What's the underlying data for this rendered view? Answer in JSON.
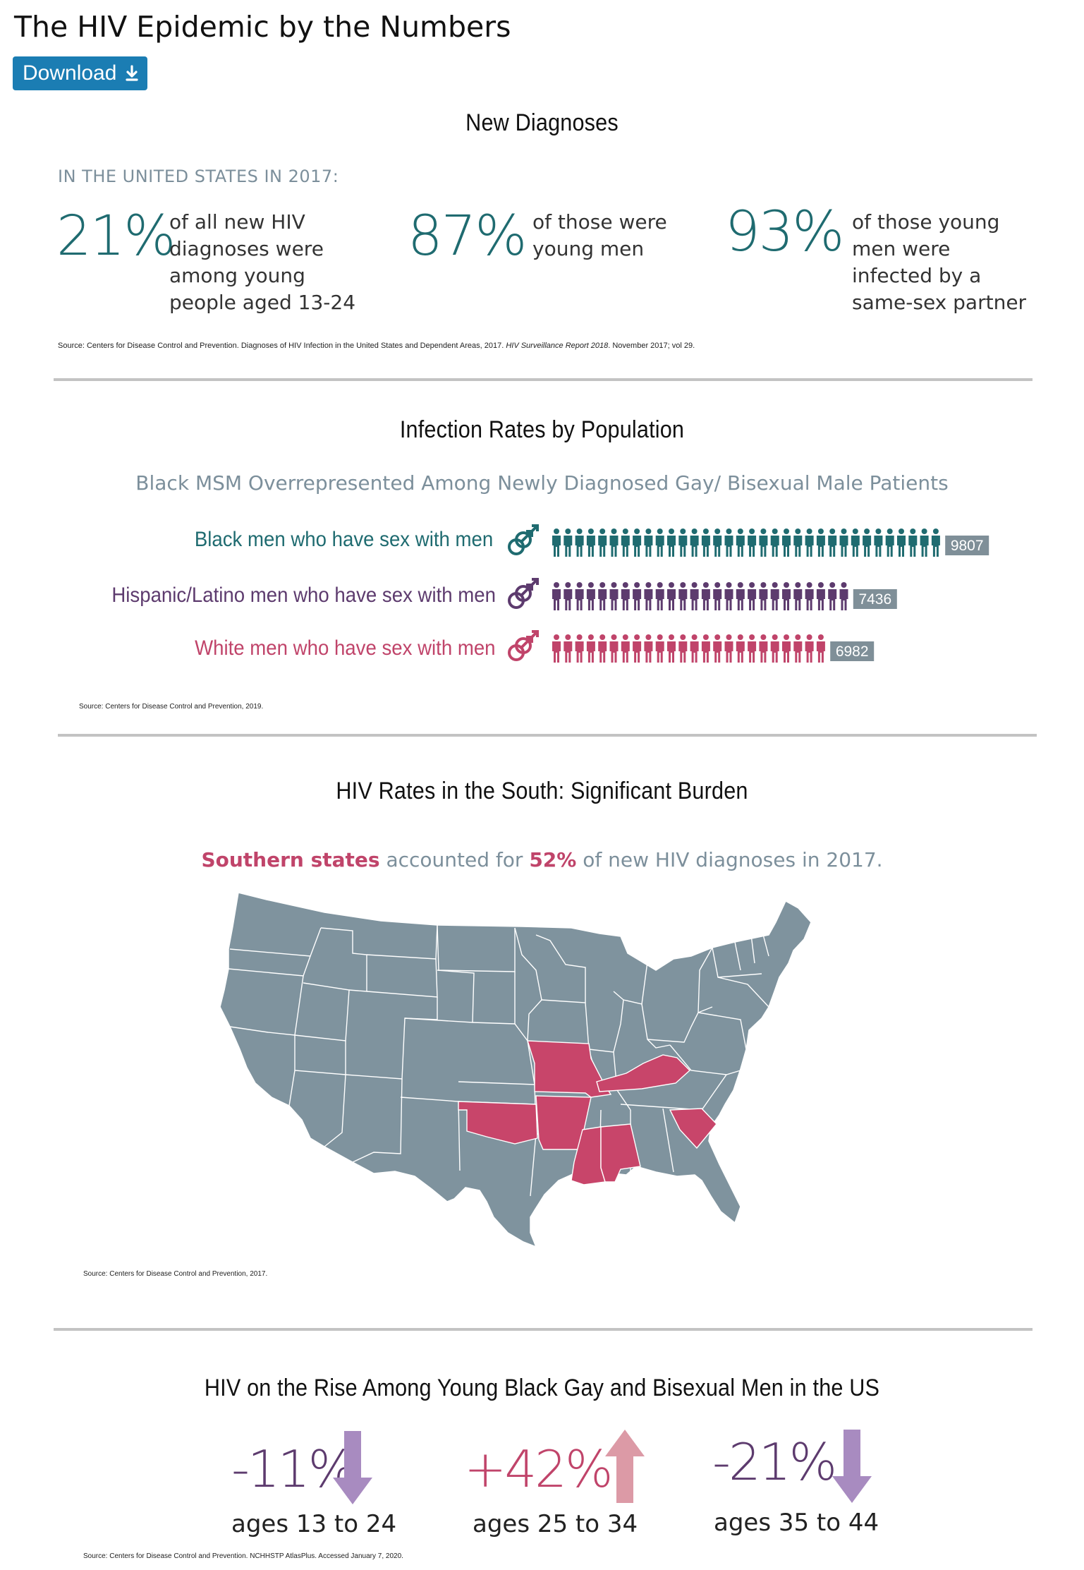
{
  "page": {
    "title": "The HIV Epidemic by the Numbers",
    "download_label": "Download"
  },
  "colors": {
    "teal": "#1f6b70",
    "purple": "#5d3b6e",
    "pink": "#c0446a",
    "map_gray": "#7f939e",
    "map_highlight": "#c8456a",
    "button": "#1b7db3"
  },
  "section1": {
    "title": "New Diagnoses",
    "kicker": "IN THE UNITED STATES IN 2017:",
    "stats": [
      {
        "pct": "21%",
        "text": [
          "of all new HIV",
          "diagnoses were",
          "among young",
          "people aged 13-24"
        ]
      },
      {
        "pct": "87%",
        "text": [
          "of those were",
          "young men"
        ]
      },
      {
        "pct": "93%",
        "text": [
          "of those young",
          "men were",
          "infected by a",
          "same-sex partner"
        ]
      }
    ],
    "source_prefix": "Source: Centers for Disease Control and Prevention. Diagnoses of HIV Infection in the United States and Dependent Areas, 2017. ",
    "source_italic": "HIV Surveillance Report 2018",
    "source_suffix": ". November 2017; vol 29."
  },
  "section2": {
    "title": "Infection Rates by Population",
    "subtitle": "Black MSM Overrepresented Among Newly Diagnosed Gay/ Bisexual Male Patients",
    "source": "Source: Centers for Disease Control and Prevention, 2019."
  },
  "chart_data": [
    {
      "type": "bar",
      "categories": [
        "Black men who have sex with men",
        "Hispanic/Latino men who have sex with men",
        "White men who have sex with men"
      ],
      "values": [
        9807,
        7436,
        6982
      ],
      "value_labels": [
        "9807",
        "7436",
        "6982"
      ]
    },
    {
      "type": "bar",
      "categories": [
        "ages 13 to 24",
        "ages 25 to 34",
        "ages 35 to 44"
      ],
      "values": [
        -11,
        42,
        -21
      ],
      "value_labels": [
        "-11%",
        "+42%",
        "-21%"
      ]
    }
  ],
  "section3": {
    "title": "HIV Rates in the South: Significant Burden",
    "sub_highlight": "Southern states",
    "sub_mid": " accounted for ",
    "sub_pct": "52%",
    "sub_end": " of new HIV diagnoses in 2017.",
    "source": "Source: Centers for Disease Control and Prevention, 2017."
  },
  "section4": {
    "title": "HIV on the Rise Among Young Black Gay and Bisexual Men in the US",
    "source": "Source: Centers for Disease Control and Prevention. NCHHSTP AtlasPlus. Accessed January 7, 2020."
  }
}
